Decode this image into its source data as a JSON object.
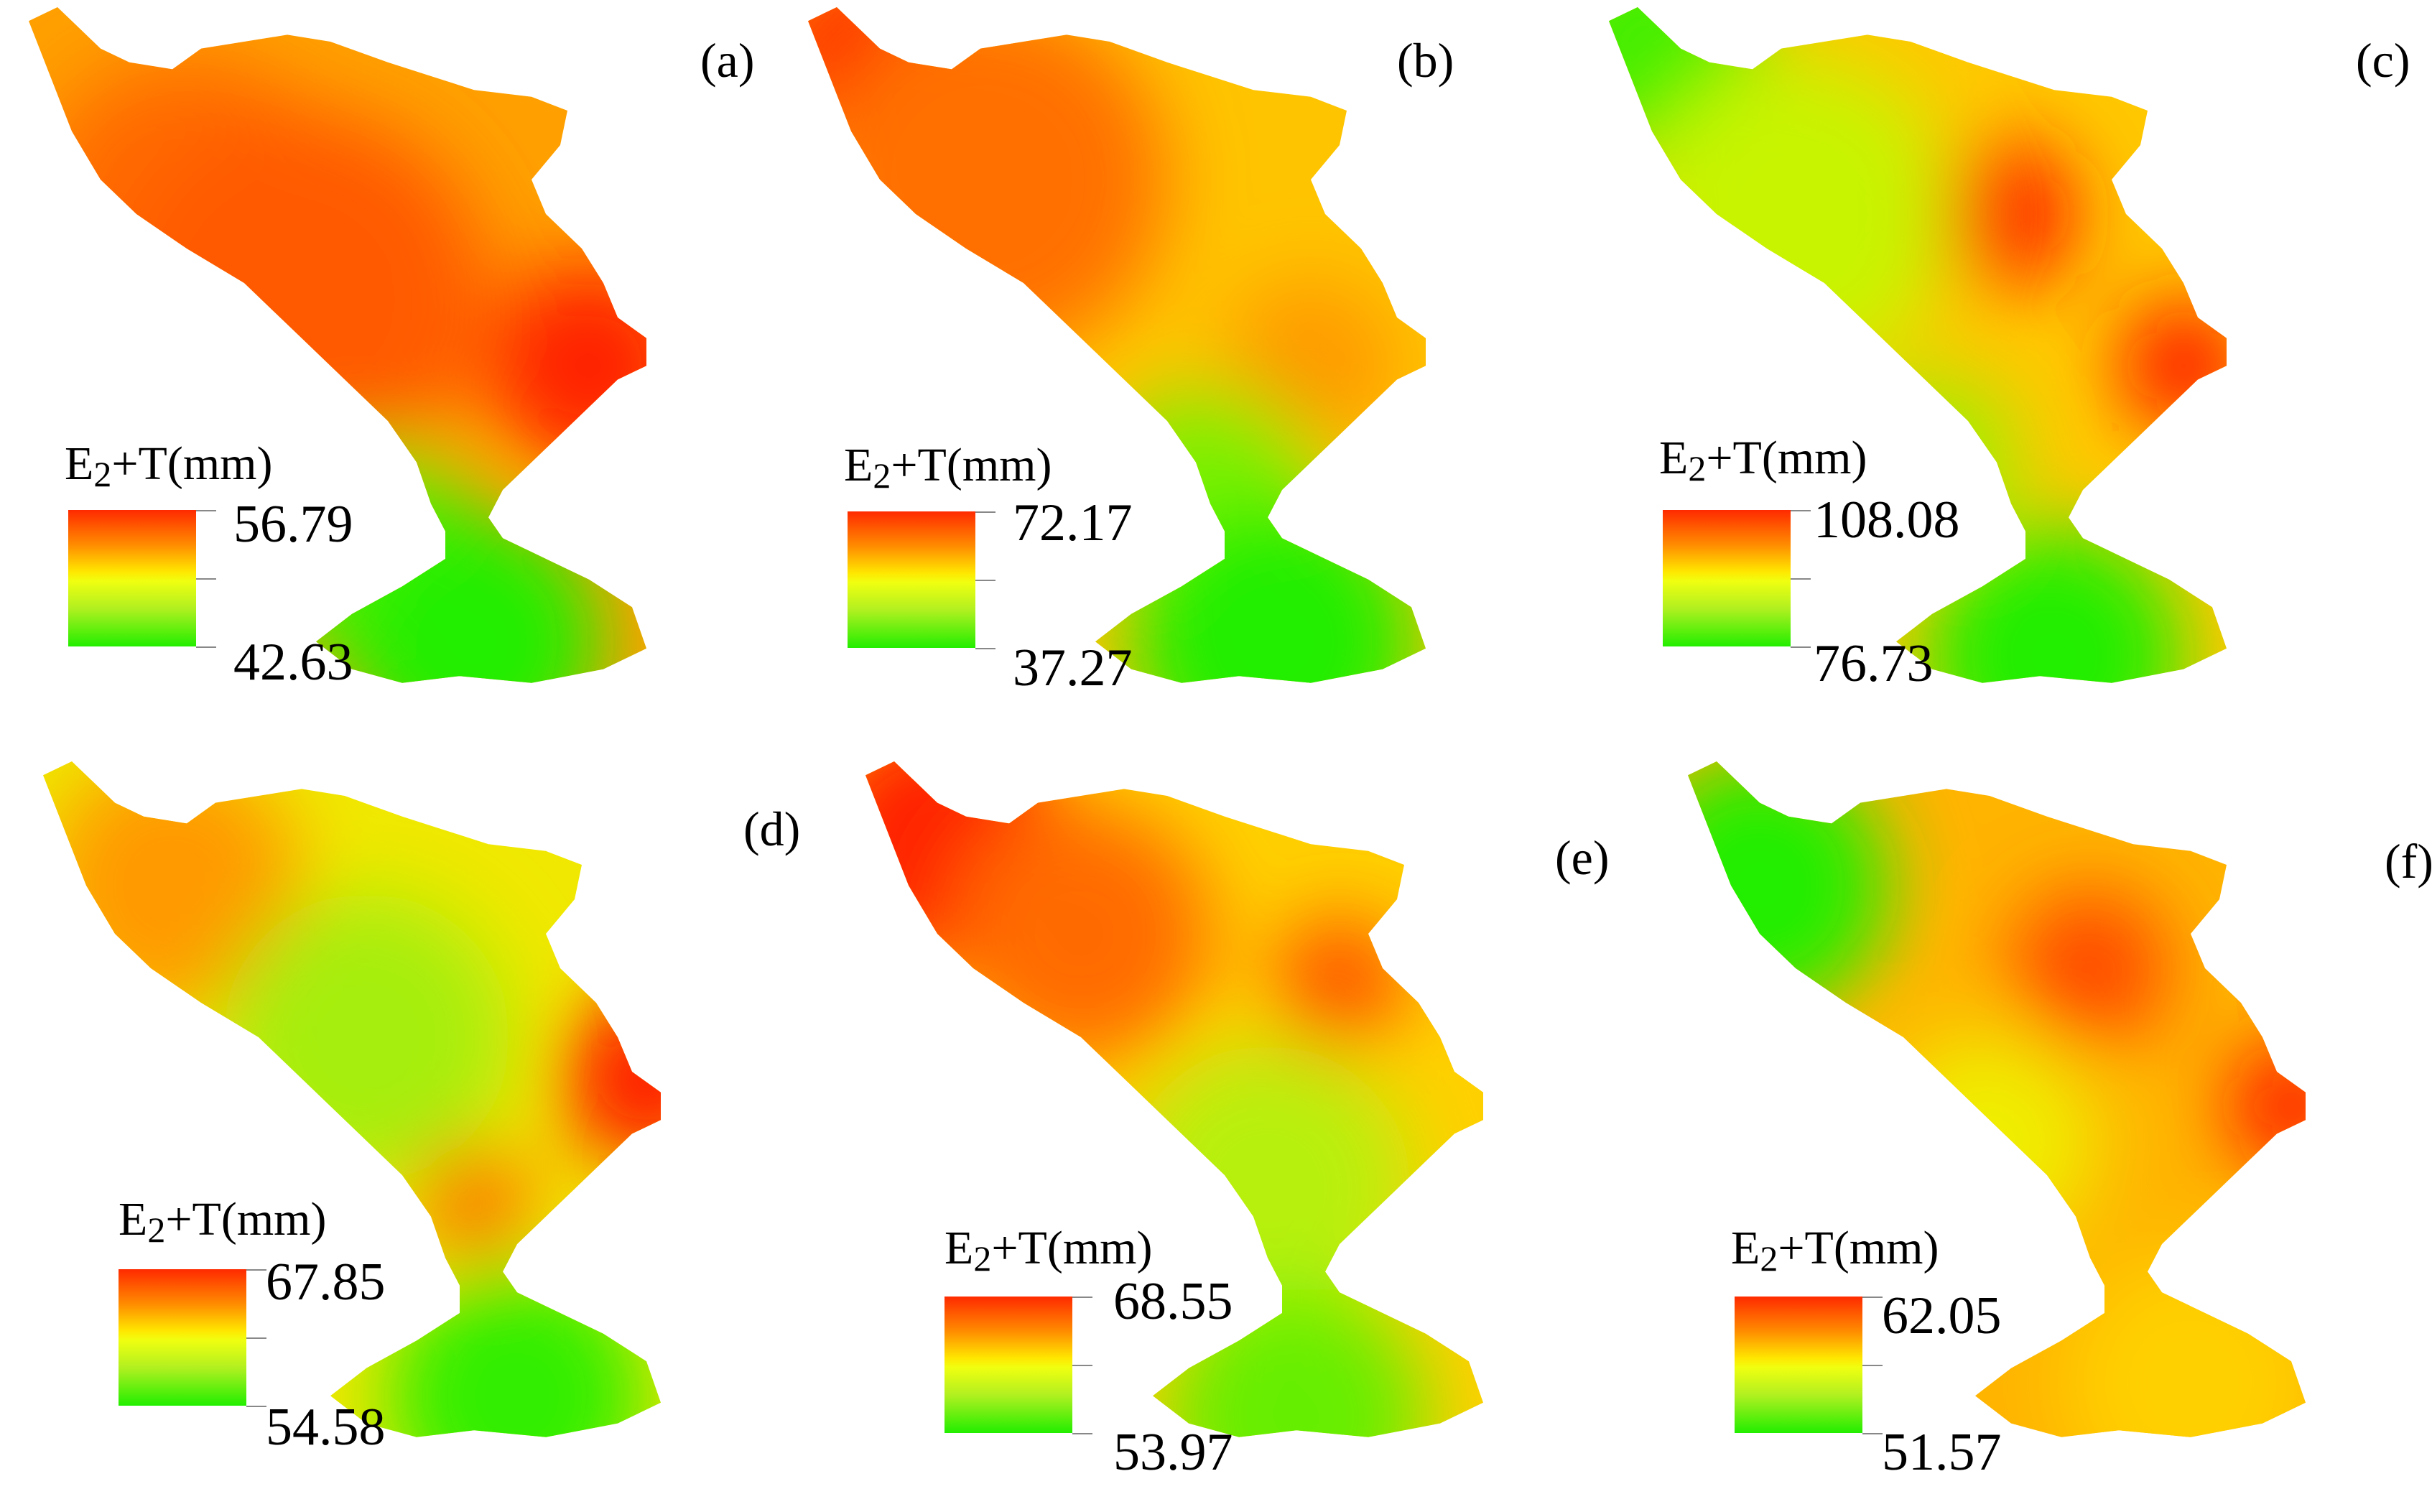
{
  "legend_title": {
    "prefix": "E",
    "sub": "2",
    "suffix": "+T(mm)"
  },
  "colors": {
    "max": "#ff2a00",
    "high": "#ff8a00",
    "mid": "#ffe600",
    "low": "#22ee00"
  },
  "panels": [
    {
      "label": "(a)",
      "max": "56.79",
      "min": "42.63",
      "hotspots": [
        [
          0.22,
          0.3,
          "#ff6a00",
          0.22
        ],
        [
          0.38,
          0.42,
          "#ff5a00",
          0.26
        ],
        [
          0.78,
          0.52,
          "#ff2000",
          0.14
        ],
        [
          0.48,
          0.8,
          "#55ee00",
          0.16
        ],
        [
          0.62,
          0.92,
          "#22ee00",
          0.18
        ]
      ],
      "base": "#ffa000"
    },
    {
      "label": "(b)",
      "max": "72.17",
      "min": "37.27",
      "hotspots": [
        [
          0.08,
          0.08,
          "#ff1a00",
          0.14
        ],
        [
          0.25,
          0.25,
          "#ff7000",
          0.25
        ],
        [
          0.7,
          0.52,
          "#ff9a00",
          0.12
        ],
        [
          0.56,
          0.72,
          "#7ef000",
          0.16
        ],
        [
          0.65,
          0.92,
          "#22ee00",
          0.2
        ]
      ],
      "base": "#ffc400"
    },
    {
      "label": "(c)",
      "max": "108.08",
      "min": "76.73",
      "hotspots": [
        [
          0.05,
          0.05,
          "#44ee00",
          0.16
        ],
        [
          0.55,
          0.3,
          "#ff1a00",
          0.1
        ],
        [
          0.8,
          0.52,
          "#ff1a00",
          0.09
        ],
        [
          0.26,
          0.3,
          "#c8f400",
          0.22
        ],
        [
          0.45,
          0.66,
          "#9ef000",
          0.12
        ],
        [
          0.62,
          0.94,
          "#22ee00",
          0.18
        ]
      ],
      "base": "#ffc800"
    },
    {
      "label": "(d)",
      "max": "67.85",
      "min": "54.58",
      "hotspots": [
        [
          0.18,
          0.18,
          "#ff9a00",
          0.18
        ],
        [
          0.45,
          0.4,
          "#a6ee10",
          0.2
        ],
        [
          0.84,
          0.46,
          "#ff1a00",
          0.12
        ],
        [
          0.6,
          0.64,
          "#ff7000",
          0.08
        ],
        [
          0.66,
          0.92,
          "#33ee00",
          0.18
        ]
      ],
      "base": "#f0e800"
    },
    {
      "label": "(e)",
      "max": "68.55",
      "min": "53.97",
      "hotspots": [
        [
          0.1,
          0.12,
          "#ff2000",
          0.18
        ],
        [
          0.3,
          0.25,
          "#ff6a00",
          0.18
        ],
        [
          0.66,
          0.32,
          "#ff5000",
          0.09
        ],
        [
          0.56,
          0.62,
          "#b8f010",
          0.2
        ],
        [
          0.6,
          0.95,
          "#66ee00",
          0.18
        ]
      ],
      "base": "#ffd000"
    },
    {
      "label": "(f)",
      "max": "62.05",
      "min": "51.57",
      "hotspots": [
        [
          0.1,
          0.18,
          "#22ee00",
          0.18
        ],
        [
          0.56,
          0.3,
          "#ff4a00",
          0.11
        ],
        [
          0.84,
          0.5,
          "#ff2000",
          0.09
        ],
        [
          0.42,
          0.55,
          "#f0ee00",
          0.15
        ],
        [
          0.7,
          0.9,
          "#ffd000",
          0.18
        ]
      ],
      "base": "#ffb400"
    }
  ]
}
